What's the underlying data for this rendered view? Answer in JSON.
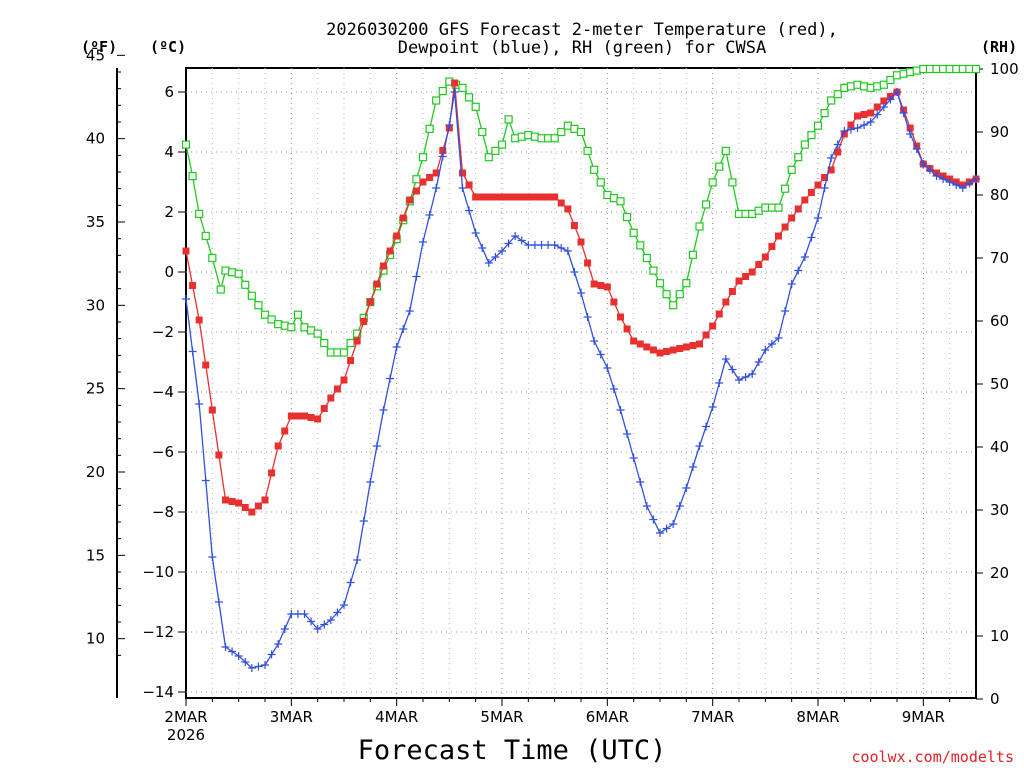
{
  "chart_data": {
    "type": "line",
    "title_line1": "2026030200 GFS Forecast 2-meter Temperature (red),",
    "title_line2": "Dewpoint (blue), RH (green) for CWSA",
    "units": {
      "left_outer": "(ºF)",
      "left_inner": "(ºC)",
      "right": "(RH)"
    },
    "xlabel": "Forecast Time (UTC)",
    "credit": "coolwx.com/modelts",
    "x_ticks": [
      {
        "day": 0,
        "label": "2MAR",
        "sub": "2026"
      },
      {
        "day": 1,
        "label": "3MAR"
      },
      {
        "day": 2,
        "label": "4MAR"
      },
      {
        "day": 3,
        "label": "5MAR"
      },
      {
        "day": 4,
        "label": "6MAR"
      },
      {
        "day": 5,
        "label": "7MAR"
      },
      {
        "day": 6,
        "label": "8MAR"
      },
      {
        "day": 7,
        "label": "9MAR"
      }
    ],
    "xlim_days": [
      0,
      7.5
    ],
    "ylim_c": [
      -14,
      7
    ],
    "ylim_rh": [
      0,
      100
    ],
    "yticks_c": [
      -14,
      -12,
      -10,
      -8,
      -6,
      -4,
      -2,
      0,
      2,
      4,
      6
    ],
    "yticks_f": [
      10,
      15,
      20,
      25,
      30,
      35,
      40,
      45
    ],
    "yticks_rh": [
      0,
      10,
      20,
      30,
      40,
      50,
      60,
      70,
      80,
      90,
      100
    ],
    "grid": true,
    "series": [
      {
        "name": "Temperature",
        "color": "#e83030",
        "marker": "filled-square",
        "axis": "C",
        "points": [
          [
            0,
            0.7
          ],
          [
            0.125,
            -1.6
          ],
          [
            0.25,
            -4.6
          ],
          [
            0.375,
            -7.6
          ],
          [
            0.5,
            -7.7
          ],
          [
            0.625,
            -8.0
          ],
          [
            0.75,
            -7.6
          ],
          [
            0.875,
            -5.8
          ],
          [
            1,
            -4.8
          ],
          [
            1.125,
            -4.8
          ],
          [
            1.25,
            -4.9
          ],
          [
            1.375,
            -4.2
          ],
          [
            1.5,
            -3.6
          ],
          [
            1.625,
            -2.3
          ],
          [
            1.75,
            -1.0
          ],
          [
            1.875,
            0.2
          ],
          [
            2,
            1.2
          ],
          [
            2.125,
            2.4
          ],
          [
            2.25,
            3.0
          ],
          [
            2.375,
            3.3
          ],
          [
            2.5,
            4.8
          ],
          [
            2.55,
            6.3
          ],
          [
            2.625,
            3.3
          ],
          [
            2.75,
            2.5
          ],
          [
            2.875,
            2.5
          ],
          [
            3,
            2.5
          ],
          [
            3.125,
            2.5
          ],
          [
            3.25,
            2.5
          ],
          [
            3.375,
            2.5
          ],
          [
            3.5,
            2.5
          ],
          [
            3.625,
            2.1
          ],
          [
            3.75,
            1.0
          ],
          [
            3.875,
            -0.4
          ],
          [
            4,
            -0.5
          ],
          [
            4.125,
            -1.5
          ],
          [
            4.25,
            -2.3
          ],
          [
            4.375,
            -2.5
          ],
          [
            4.5,
            -2.7
          ],
          [
            4.625,
            -2.6
          ],
          [
            4.75,
            -2.5
          ],
          [
            4.875,
            -2.4
          ],
          [
            5,
            -1.8
          ],
          [
            5.125,
            -1.0
          ],
          [
            5.25,
            -0.3
          ],
          [
            5.375,
            0
          ],
          [
            5.5,
            0.5
          ],
          [
            5.625,
            1.2
          ],
          [
            5.75,
            1.8
          ],
          [
            5.875,
            2.4
          ],
          [
            6,
            2.9
          ],
          [
            6.125,
            3.4
          ],
          [
            6.25,
            4.6
          ],
          [
            6.375,
            5.2
          ],
          [
            6.5,
            5.3
          ],
          [
            6.625,
            5.7
          ],
          [
            6.75,
            6.0
          ],
          [
            6.875,
            4.8
          ],
          [
            7,
            3.6
          ],
          [
            7.125,
            3.3
          ],
          [
            7.25,
            3.1
          ],
          [
            7.375,
            2.9
          ],
          [
            7.5,
            3.1
          ]
        ]
      },
      {
        "name": "Dewpoint",
        "color": "#3050e0",
        "marker": "plus",
        "axis": "C",
        "points": [
          [
            0,
            -0.9
          ],
          [
            0.125,
            -4.4
          ],
          [
            0.25,
            -9.5
          ],
          [
            0.375,
            -12.5
          ],
          [
            0.5,
            -12.8
          ],
          [
            0.625,
            -13.2
          ],
          [
            0.75,
            -13.1
          ],
          [
            0.875,
            -12.4
          ],
          [
            1,
            -11.4
          ],
          [
            1.125,
            -11.4
          ],
          [
            1.25,
            -11.9
          ],
          [
            1.375,
            -11.6
          ],
          [
            1.5,
            -11.1
          ],
          [
            1.625,
            -9.6
          ],
          [
            1.75,
            -7.0
          ],
          [
            1.875,
            -4.6
          ],
          [
            2,
            -2.5
          ],
          [
            2.125,
            -1.3
          ],
          [
            2.25,
            1.0
          ],
          [
            2.375,
            2.8
          ],
          [
            2.5,
            4.9
          ],
          [
            2.55,
            6.0
          ],
          [
            2.625,
            2.8
          ],
          [
            2.75,
            1.3
          ],
          [
            2.875,
            0.3
          ],
          [
            3,
            0.7
          ],
          [
            3.125,
            1.2
          ],
          [
            3.25,
            0.9
          ],
          [
            3.375,
            0.9
          ],
          [
            3.5,
            0.9
          ],
          [
            3.625,
            0.7
          ],
          [
            3.75,
            -0.7
          ],
          [
            3.875,
            -2.3
          ],
          [
            4,
            -3.2
          ],
          [
            4.125,
            -4.6
          ],
          [
            4.25,
            -6.2
          ],
          [
            4.375,
            -7.8
          ],
          [
            4.5,
            -8.7
          ],
          [
            4.625,
            -8.4
          ],
          [
            4.75,
            -7.2
          ],
          [
            4.875,
            -5.8
          ],
          [
            5,
            -4.5
          ],
          [
            5.125,
            -2.9
          ],
          [
            5.25,
            -3.6
          ],
          [
            5.375,
            -3.4
          ],
          [
            5.5,
            -2.6
          ],
          [
            5.625,
            -2.2
          ],
          [
            5.75,
            -0.4
          ],
          [
            5.875,
            0.5
          ],
          [
            6,
            1.8
          ],
          [
            6.125,
            3.8
          ],
          [
            6.25,
            4.7
          ],
          [
            6.375,
            4.8
          ],
          [
            6.5,
            5.0
          ],
          [
            6.625,
            5.5
          ],
          [
            6.75,
            6.0
          ],
          [
            6.875,
            4.6
          ],
          [
            7,
            3.6
          ],
          [
            7.125,
            3.2
          ],
          [
            7.25,
            3.0
          ],
          [
            7.375,
            2.8
          ],
          [
            7.5,
            3.1
          ]
        ]
      },
      {
        "name": "RH",
        "color": "#20c820",
        "marker": "open-square",
        "axis": "RH",
        "points": [
          [
            0,
            88
          ],
          [
            0.0625,
            83
          ],
          [
            0.125,
            77
          ],
          [
            0.25,
            70
          ],
          [
            0.33,
            65
          ],
          [
            0.375,
            68
          ],
          [
            0.5,
            67.5
          ],
          [
            0.625,
            64
          ],
          [
            0.75,
            61
          ],
          [
            0.875,
            59.5
          ],
          [
            1,
            59
          ],
          [
            1.0625,
            61
          ],
          [
            1.125,
            59
          ],
          [
            1.25,
            58
          ],
          [
            1.375,
            55
          ],
          [
            1.5,
            55
          ],
          [
            1.625,
            58
          ],
          [
            1.75,
            63
          ],
          [
            1.875,
            68
          ],
          [
            2,
            73
          ],
          [
            2.125,
            79
          ],
          [
            2.25,
            86
          ],
          [
            2.375,
            95
          ],
          [
            2.5,
            98
          ],
          [
            2.625,
            97
          ],
          [
            2.75,
            94
          ],
          [
            2.875,
            86
          ],
          [
            3,
            88
          ],
          [
            3.0625,
            92
          ],
          [
            3.125,
            89
          ],
          [
            3.25,
            89.5
          ],
          [
            3.375,
            89
          ],
          [
            3.5,
            89
          ],
          [
            3.625,
            91
          ],
          [
            3.75,
            90
          ],
          [
            3.875,
            84
          ],
          [
            4,
            80
          ],
          [
            4.125,
            79
          ],
          [
            4.25,
            74
          ],
          [
            4.375,
            70
          ],
          [
            4.5,
            66
          ],
          [
            4.625,
            62.5
          ],
          [
            4.75,
            66
          ],
          [
            4.875,
            75
          ],
          [
            5,
            82
          ],
          [
            5.125,
            87
          ],
          [
            5.25,
            77
          ],
          [
            5.375,
            77
          ],
          [
            5.5,
            78
          ],
          [
            5.625,
            78
          ],
          [
            5.75,
            84
          ],
          [
            5.875,
            88
          ],
          [
            6,
            91
          ],
          [
            6.125,
            95
          ],
          [
            6.25,
            97
          ],
          [
            6.375,
            97.5
          ],
          [
            6.5,
            97
          ],
          [
            6.625,
            97.5
          ],
          [
            6.75,
            99
          ],
          [
            6.875,
            99.5
          ],
          [
            7,
            100
          ],
          [
            7.125,
            100
          ],
          [
            7.25,
            100
          ],
          [
            7.375,
            100
          ],
          [
            7.5,
            100
          ]
        ]
      }
    ]
  }
}
